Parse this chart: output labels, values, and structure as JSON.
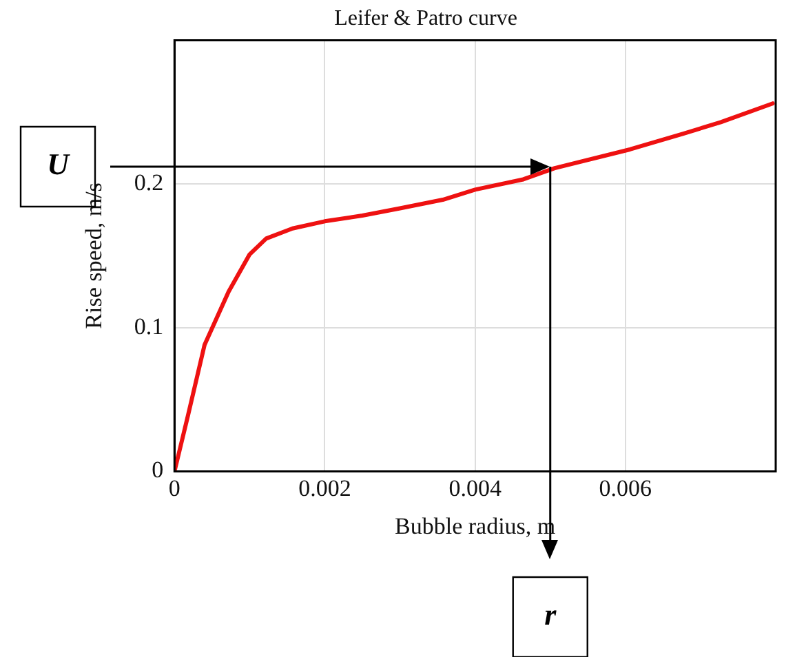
{
  "chart_data": {
    "type": "line",
    "title": "Leifer & Patro curve",
    "xlabel": "Bubble radius, m",
    "ylabel": "Rise speed, m/s",
    "x": [
      0,
      0.00018,
      0.0004,
      0.00072,
      0.001,
      0.00122,
      0.00157,
      0.002,
      0.0025,
      0.003,
      0.00357,
      0.004,
      0.00463,
      0.00506,
      0.00606,
      0.00677,
      0.00727,
      0.00796
    ],
    "series": [
      {
        "color": "#ee1111",
        "values": [
          0,
          0.039,
          0.088,
          0.125,
          0.151,
          0.162,
          0.169,
          0.174,
          0.178,
          0.183,
          0.189,
          0.196,
          0.203,
          0.211,
          0.224,
          0.235,
          0.243,
          0.256
        ]
      }
    ],
    "xlim": [
      0,
      0.008
    ],
    "ylim": [
      0,
      0.3
    ],
    "xticks": [
      0,
      0.002,
      0.004,
      0.006
    ],
    "yticks": [
      0,
      0.1,
      0.2
    ],
    "grid": true,
    "legend": false,
    "marker": "none",
    "line_style": "solid",
    "ref_lines": [
      {
        "axis": "y",
        "value": 0.212,
        "label": "U",
        "color": "#000000",
        "line_style": "solid"
      },
      {
        "axis": "x",
        "value": 0.005,
        "label": "r",
        "color": "#000000",
        "line_style": "solid"
      }
    ]
  }
}
